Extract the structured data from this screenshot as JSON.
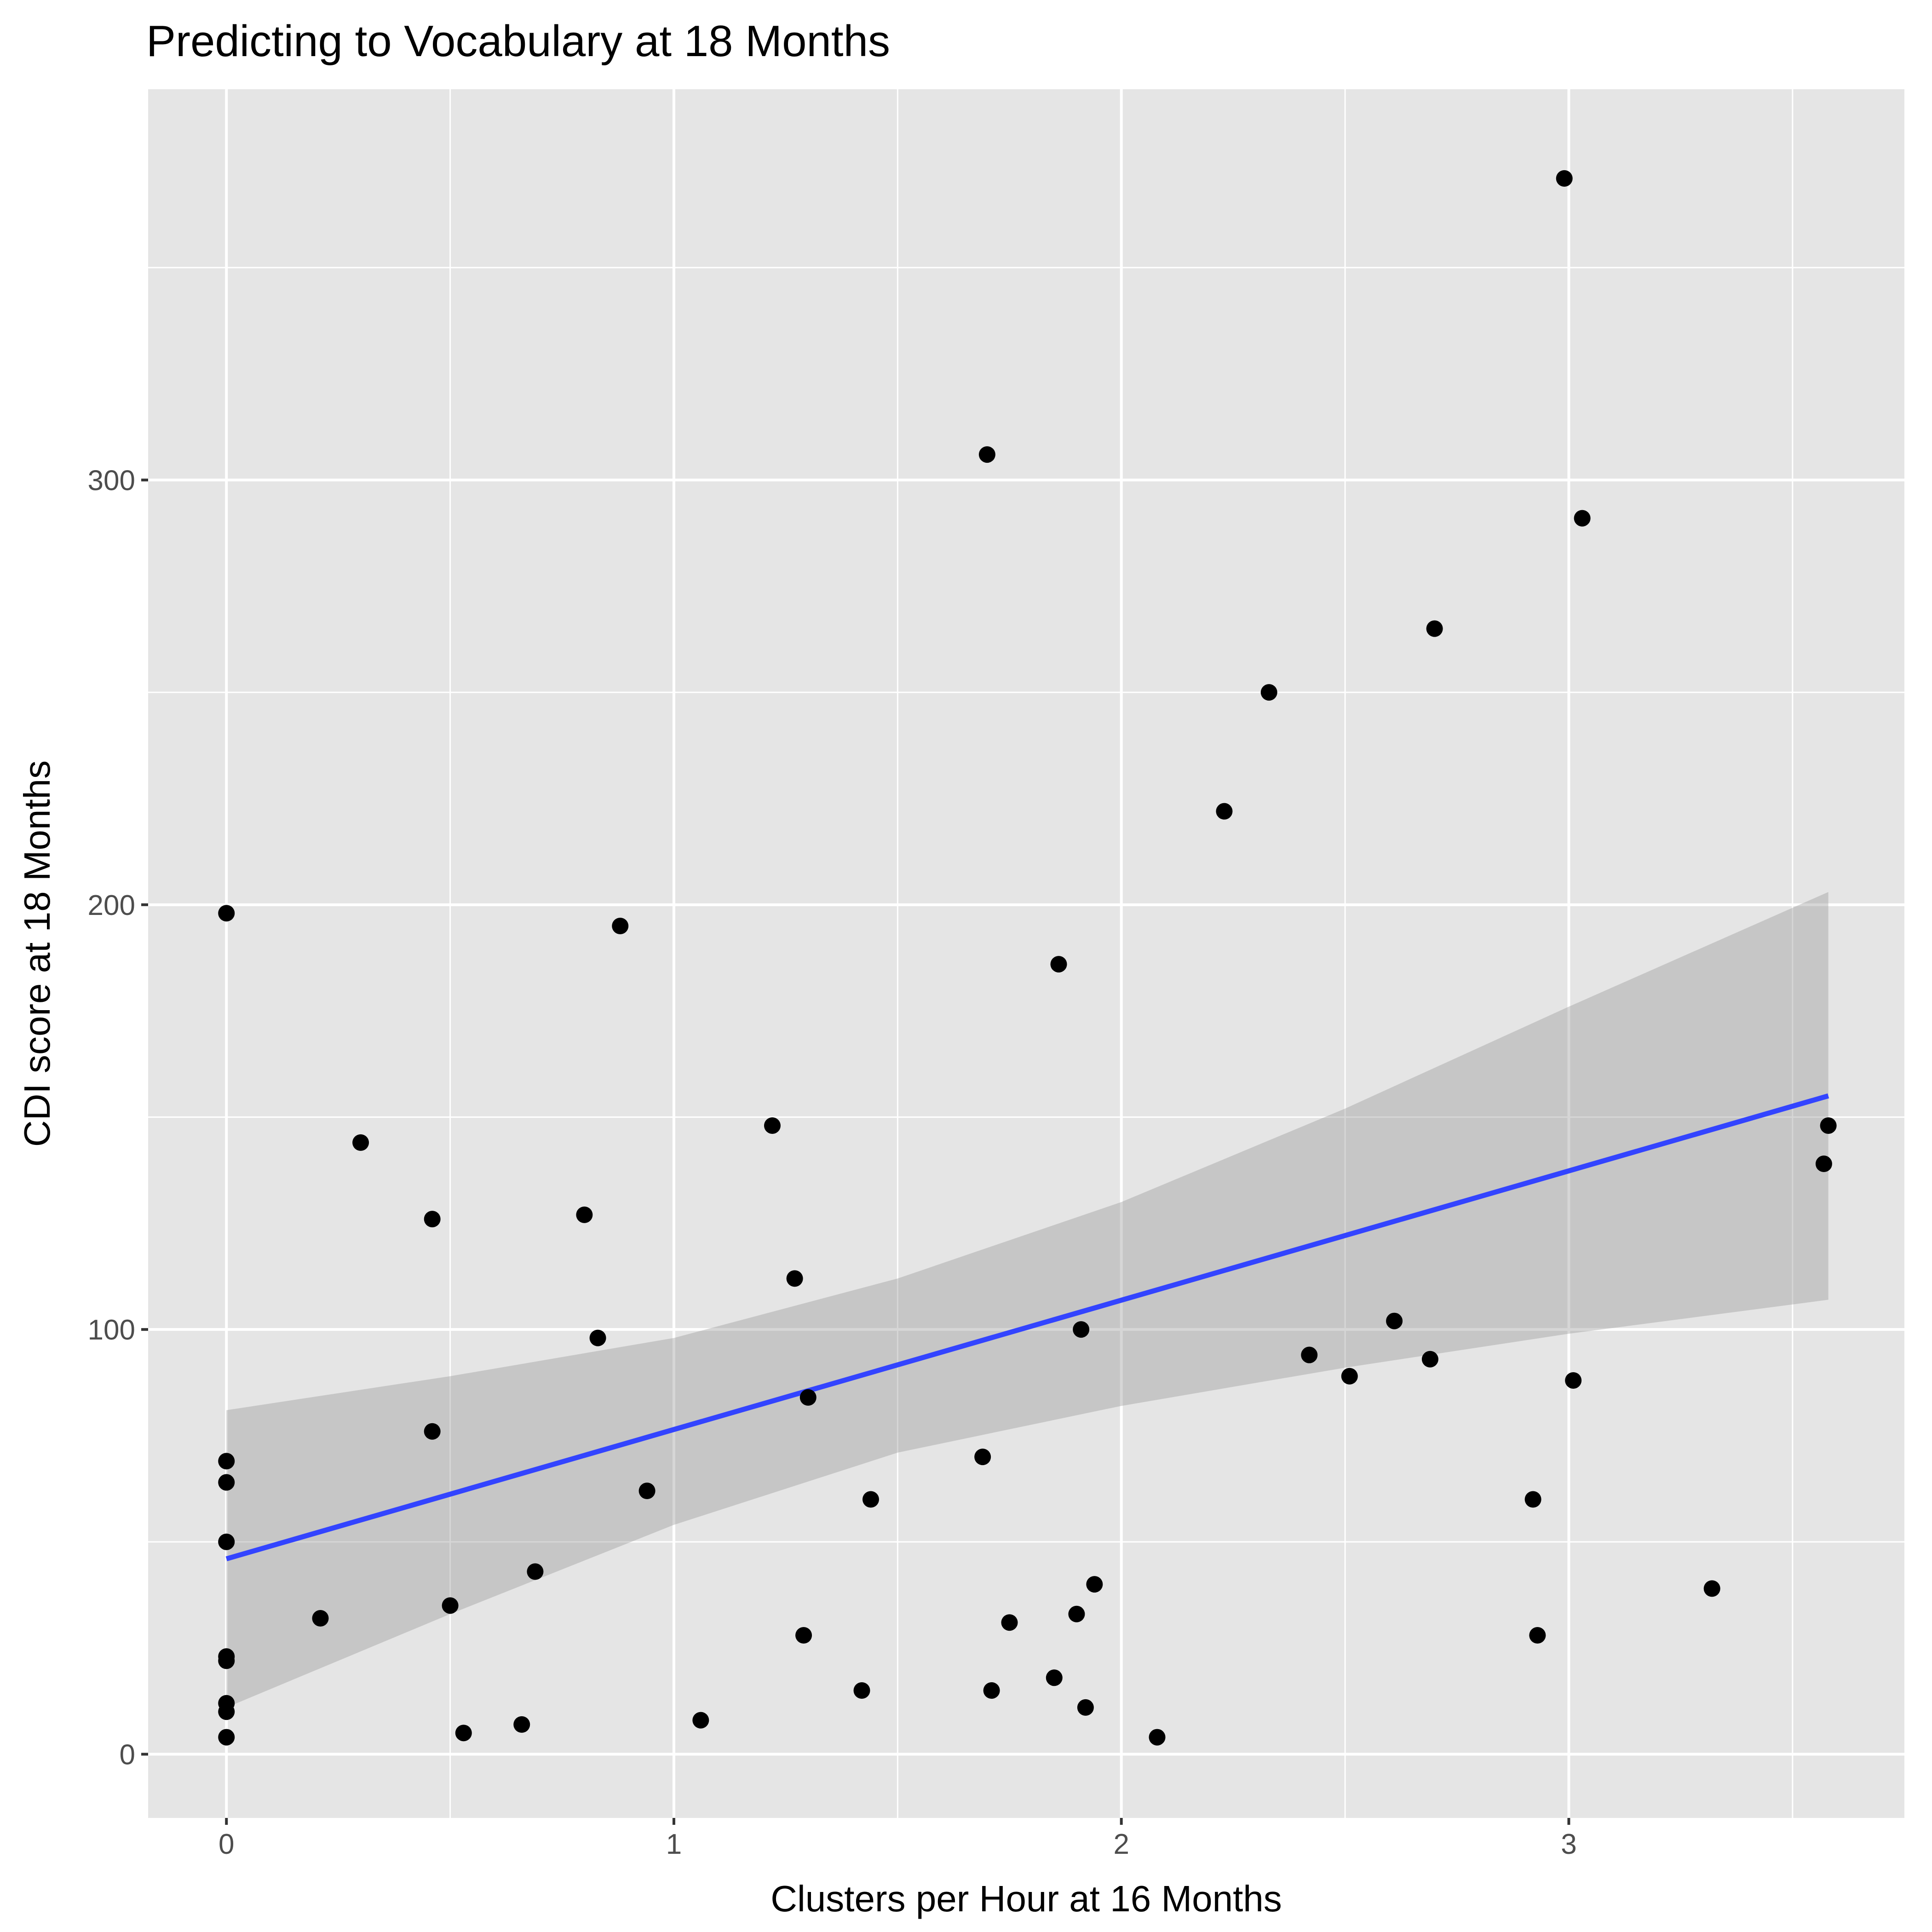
{
  "chart_data": {
    "type": "scatter",
    "title": "Predicting to Vocabulary at 18 Months",
    "xlabel": "Clusters per Hour at 16 Months",
    "ylabel": "CDI score at 18 Months",
    "xlim": [
      -0.175,
      3.75
    ],
    "ylim": [
      -15,
      392
    ],
    "x_ticks": [
      0,
      1,
      2,
      3
    ],
    "y_ticks": [
      0,
      100,
      200,
      300
    ],
    "x_minor_ticks": [
      0.5,
      1.5,
      2.5,
      3.5
    ],
    "y_minor_ticks": [
      50,
      150,
      250,
      350
    ],
    "grid": true,
    "colors": {
      "panel": "#e5e5e5",
      "grid": "#ffffff",
      "points": "#000000",
      "line": "#3344ff",
      "band": "#bdbdbd"
    },
    "points": [
      {
        "x": 0,
        "y": 198
      },
      {
        "x": 0,
        "y": 69
      },
      {
        "x": 0,
        "y": 64
      },
      {
        "x": 0,
        "y": 50
      },
      {
        "x": 0,
        "y": 23
      },
      {
        "x": 0,
        "y": 22
      },
      {
        "x": 0,
        "y": 12
      },
      {
        "x": 0,
        "y": 10
      },
      {
        "x": 0,
        "y": 4
      },
      {
        "x": 0.21,
        "y": 32
      },
      {
        "x": 0.3,
        "y": 144
      },
      {
        "x": 0.46,
        "y": 126
      },
      {
        "x": 0.46,
        "y": 76
      },
      {
        "x": 0.5,
        "y": 35
      },
      {
        "x": 0.53,
        "y": 5
      },
      {
        "x": 0.66,
        "y": 7
      },
      {
        "x": 0.69,
        "y": 43
      },
      {
        "x": 0.8,
        "y": 127
      },
      {
        "x": 0.83,
        "y": 98
      },
      {
        "x": 0.88,
        "y": 195
      },
      {
        "x": 0.94,
        "y": 62
      },
      {
        "x": 1.06,
        "y": 8
      },
      {
        "x": 1.22,
        "y": 148
      },
      {
        "x": 1.27,
        "y": 112
      },
      {
        "x": 1.29,
        "y": 28
      },
      {
        "x": 1.3,
        "y": 84
      },
      {
        "x": 1.42,
        "y": 15
      },
      {
        "x": 1.44,
        "y": 60
      },
      {
        "x": 1.69,
        "y": 70
      },
      {
        "x": 1.7,
        "y": 306
      },
      {
        "x": 1.71,
        "y": 15
      },
      {
        "x": 1.75,
        "y": 31
      },
      {
        "x": 1.85,
        "y": 18
      },
      {
        "x": 1.86,
        "y": 186
      },
      {
        "x": 1.9,
        "y": 33
      },
      {
        "x": 1.91,
        "y": 100
      },
      {
        "x": 1.92,
        "y": 11
      },
      {
        "x": 1.94,
        "y": 40
      },
      {
        "x": 2.08,
        "y": 4
      },
      {
        "x": 2.23,
        "y": 222
      },
      {
        "x": 2.33,
        "y": 250
      },
      {
        "x": 2.42,
        "y": 94
      },
      {
        "x": 2.51,
        "y": 89
      },
      {
        "x": 2.61,
        "y": 102
      },
      {
        "x": 2.69,
        "y": 93
      },
      {
        "x": 2.7,
        "y": 265
      },
      {
        "x": 2.92,
        "y": 60
      },
      {
        "x": 2.93,
        "y": 28
      },
      {
        "x": 2.99,
        "y": 371
      },
      {
        "x": 3.01,
        "y": 88
      },
      {
        "x": 3.03,
        "y": 291
      },
      {
        "x": 3.32,
        "y": 39
      },
      {
        "x": 3.57,
        "y": 139
      },
      {
        "x": 3.58,
        "y": 148
      }
    ],
    "fit_line": {
      "method": "linear",
      "x": [
        0,
        3.58
      ],
      "y": [
        46,
        155
      ]
    },
    "confidence_band": {
      "x": [
        0,
        0.5,
        1.0,
        1.5,
        2.0,
        2.5,
        3.0,
        3.58
      ],
      "lower": [
        11,
        33,
        54,
        71,
        82,
        91,
        99,
        107
      ],
      "upper": [
        81,
        89,
        98,
        112,
        130,
        152,
        176,
        203
      ]
    }
  }
}
